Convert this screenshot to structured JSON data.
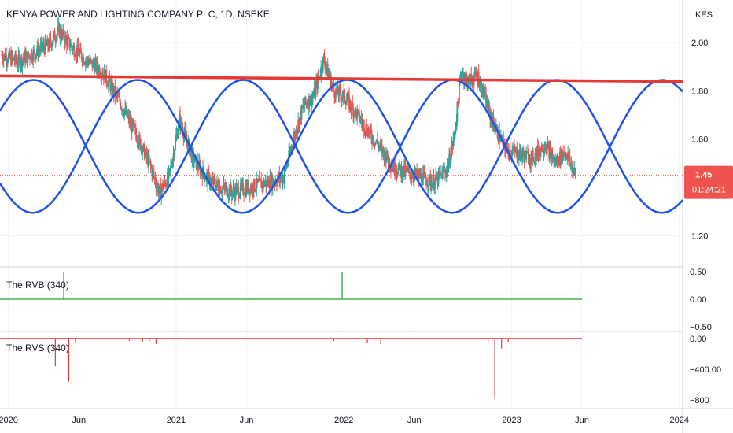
{
  "header": {
    "symbol_title": "KENYA POWER AND LIGHTING COMPANY PLC, 1D, NSEKE",
    "currency": "KES"
  },
  "price_tag": {
    "last_price": "1.45",
    "countdown": "01:24:21"
  },
  "colors": {
    "up": "#26a69a",
    "down": "#ef5350",
    "resistance": "#e53935",
    "sine": "#1e53e5",
    "rvb": "#4caf50",
    "rvs": "#e53935",
    "price_tag": "#ef5350"
  },
  "indicators": {
    "rvb_label": "The RVB (340)",
    "rvs_label": "The RVS (340)"
  },
  "chart_data": [
    {
      "type": "candlestick",
      "title": "KENYA POWER AND LIGHTING COMPANY PLC, 1D, NSEKE",
      "ylabel": "KES",
      "ylim": [
        1.1,
        2.15
      ],
      "y_ticks": [
        "2.00",
        "1.80",
        "1.60",
        "1.20"
      ],
      "x_ticks": [
        "2020",
        "Jun",
        "2021",
        "Jun",
        "2022",
        "Jun",
        "2023",
        "Jun",
        "2024"
      ],
      "x_tick_values": [
        2020.0,
        2020.42,
        2021.0,
        2021.42,
        2022.0,
        2022.42,
        2023.0,
        2023.42,
        2024.0
      ],
      "xlim": [
        2019.95,
        2024.02
      ],
      "last_price": 1.45,
      "price_line_series": {
        "x": [
          2019.96,
          2020.06,
          2020.16,
          2020.24,
          2020.3,
          2020.38,
          2020.46,
          2020.56,
          2020.66,
          2020.76,
          2020.84,
          2020.9,
          2020.96,
          2021.02,
          2021.1,
          2021.18,
          2021.26,
          2021.34,
          2021.44,
          2021.54,
          2021.64,
          2021.7,
          2021.76,
          2021.82,
          2021.88,
          2021.94,
          2022.0,
          2022.06,
          2022.14,
          2022.22,
          2022.3,
          2022.38,
          2022.46,
          2022.54,
          2022.62,
          2022.66,
          2022.7,
          2022.74,
          2022.8,
          2022.88,
          2022.96,
          2023.04,
          2023.12,
          2023.2,
          2023.26,
          2023.32,
          2023.38
        ],
        "close": [
          1.95,
          1.92,
          1.96,
          1.99,
          2.05,
          1.98,
          1.93,
          1.88,
          1.76,
          1.62,
          1.5,
          1.38,
          1.45,
          1.68,
          1.52,
          1.44,
          1.4,
          1.38,
          1.4,
          1.42,
          1.44,
          1.6,
          1.74,
          1.78,
          1.93,
          1.8,
          1.78,
          1.72,
          1.64,
          1.56,
          1.48,
          1.46,
          1.44,
          1.42,
          1.48,
          1.62,
          1.88,
          1.84,
          1.86,
          1.68,
          1.56,
          1.54,
          1.52,
          1.58,
          1.5,
          1.55,
          1.45
        ]
      },
      "resistance_line": {
        "x": [
          2019.95,
          2024.02
        ],
        "y": [
          1.862,
          1.838
        ]
      },
      "sine_waves": [
        {
          "period_years": 1.25,
          "center": 1.57,
          "amplitude": 0.275,
          "peak_x": 2020.15
        },
        {
          "period_years": 1.25,
          "center": 1.57,
          "amplitude": 0.275,
          "peak_x": 2020.77,
          "phase_shift_note": ""
        }
      ]
    },
    {
      "type": "bar",
      "title": "The RVB (340)",
      "ylim": [
        -0.5,
        0.5
      ],
      "y_ticks": [
        "0.50",
        "0.00",
        "−0.50"
      ],
      "spikes": {
        "x": [
          2020.33,
          2021.99
        ],
        "values": [
          0.5,
          0.5
        ]
      },
      "baseline_end_x": 2023.42
    },
    {
      "type": "bar",
      "title": "The RVS (340)",
      "ylim": [
        -820,
        0
      ],
      "y_ticks": [
        "0.00",
        "−400.00",
        "−800"
      ],
      "spikes": {
        "x": [
          2020.28,
          2020.36,
          2020.4,
          2020.72,
          2020.8,
          2020.84,
          2020.88,
          2021.94,
          2022.14,
          2022.18,
          2022.22,
          2022.86,
          2022.9,
          2022.94,
          2022.98
        ],
        "values": [
          -360,
          -560,
          -60,
          -30,
          -40,
          -40,
          -70,
          -30,
          -60,
          -60,
          -70,
          -60,
          -780,
          -130,
          -50
        ]
      },
      "baseline_end_x": 2023.42
    }
  ]
}
